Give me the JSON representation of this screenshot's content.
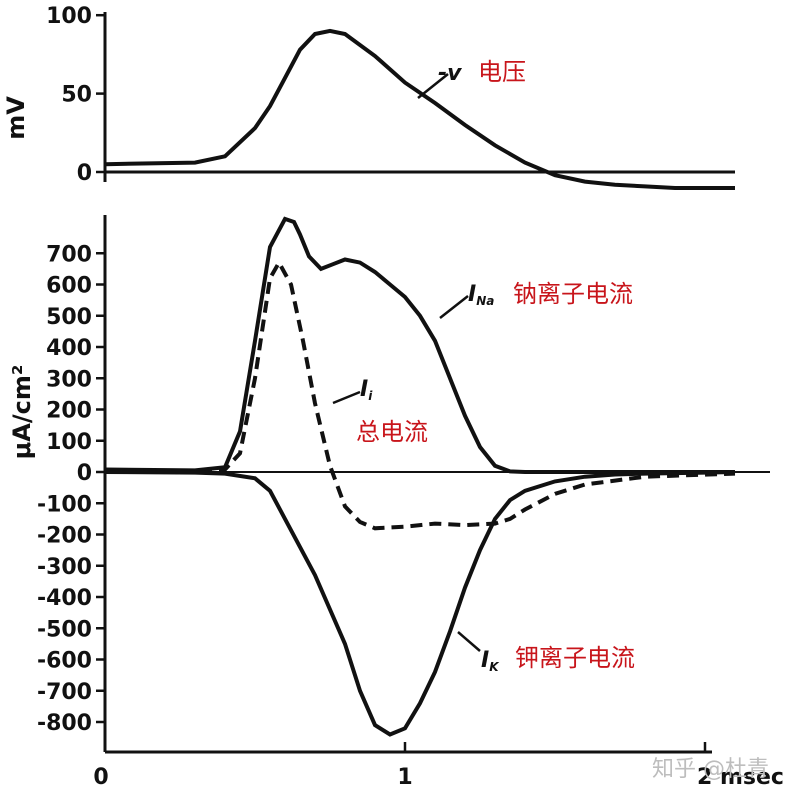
{
  "chart_data": [
    {
      "type": "line",
      "ylabel": "mV",
      "yticks": [
        "100",
        "50",
        "0"
      ],
      "ytick_values": [
        100,
        50,
        0
      ],
      "ylim": [
        0,
        100
      ],
      "xlim": [
        0,
        2
      ],
      "series": [
        {
          "name": "-v",
          "annotation": "电压",
          "style": "solid",
          "x": [
            0.0,
            0.3,
            0.4,
            0.5,
            0.55,
            0.6,
            0.65,
            0.7,
            0.75,
            0.8,
            0.9,
            1.0,
            1.1,
            1.2,
            1.3,
            1.4,
            1.5,
            1.6,
            1.7,
            1.8,
            1.9,
            2.1
          ],
          "values": [
            5,
            6,
            10,
            28,
            42,
            60,
            78,
            88,
            90,
            88,
            74,
            57,
            44,
            30,
            17,
            6,
            -2,
            -6,
            -8,
            -9,
            -10,
            -10
          ]
        }
      ]
    },
    {
      "type": "line",
      "ylabel": "μA/cm²",
      "yticks": [
        "700",
        "600",
        "500",
        "400",
        "300",
        "200",
        "100",
        "0",
        "-100",
        "-200",
        "-300",
        "-400",
        "-500",
        "-600",
        "-700",
        "-800"
      ],
      "ytick_values": [
        700,
        600,
        500,
        400,
        300,
        200,
        100,
        0,
        -100,
        -200,
        -300,
        -400,
        -500,
        -600,
        -700,
        -800
      ],
      "ylim": [
        -850,
        800
      ],
      "xlim": [
        0,
        2.2
      ],
      "xticks": [
        "0",
        "1",
        "2 msec"
      ],
      "xtick_values": [
        0,
        1,
        2
      ],
      "series": [
        {
          "name": "INa",
          "name_main": "I",
          "name_sub": "Na",
          "annotation": "钠离子电流",
          "style": "solid",
          "x": [
            0.0,
            0.3,
            0.4,
            0.45,
            0.5,
            0.55,
            0.6,
            0.63,
            0.65,
            0.68,
            0.72,
            0.76,
            0.8,
            0.85,
            0.9,
            0.95,
            1.0,
            1.05,
            1.1,
            1.15,
            1.2,
            1.25,
            1.3,
            1.35,
            1.4,
            1.5,
            1.6,
            1.8,
            2.1
          ],
          "values": [
            8,
            5,
            15,
            130,
            420,
            720,
            810,
            800,
            760,
            690,
            650,
            665,
            680,
            670,
            640,
            600,
            560,
            500,
            420,
            300,
            180,
            80,
            20,
            2,
            0,
            0,
            0,
            0,
            0
          ]
        },
        {
          "name": "Ii",
          "name_main": "I",
          "name_sub": "i",
          "annotation": "总电流",
          "style": "dashed",
          "x": [
            0.0,
            0.3,
            0.4,
            0.45,
            0.5,
            0.55,
            0.58,
            0.62,
            0.66,
            0.7,
            0.75,
            0.8,
            0.85,
            0.9,
            1.0,
            1.1,
            1.2,
            1.3,
            1.35,
            1.4,
            1.5,
            1.6,
            1.8,
            2.1
          ],
          "values": [
            5,
            2,
            8,
            60,
            300,
            620,
            670,
            600,
            420,
            220,
            20,
            -110,
            -160,
            -180,
            -175,
            -165,
            -170,
            -165,
            -150,
            -120,
            -70,
            -40,
            -15,
            -5
          ]
        },
        {
          "name": "IK",
          "name_main": "I",
          "name_sub": "K",
          "annotation": "钾离子电流",
          "style": "solid",
          "x": [
            0.0,
            0.3,
            0.4,
            0.5,
            0.55,
            0.6,
            0.7,
            0.8,
            0.85,
            0.9,
            0.95,
            1.0,
            1.05,
            1.1,
            1.15,
            1.2,
            1.25,
            1.3,
            1.35,
            1.4,
            1.5,
            1.6,
            1.7,
            1.8,
            2.0,
            2.1
          ],
          "values": [
            0,
            -2,
            -5,
            -20,
            -60,
            -150,
            -330,
            -550,
            -700,
            -810,
            -840,
            -820,
            -740,
            -640,
            -510,
            -370,
            -250,
            -150,
            -90,
            -60,
            -30,
            -15,
            -8,
            -5,
            -2,
            0
          ]
        }
      ]
    }
  ],
  "watermark": "知乎 @杜青"
}
